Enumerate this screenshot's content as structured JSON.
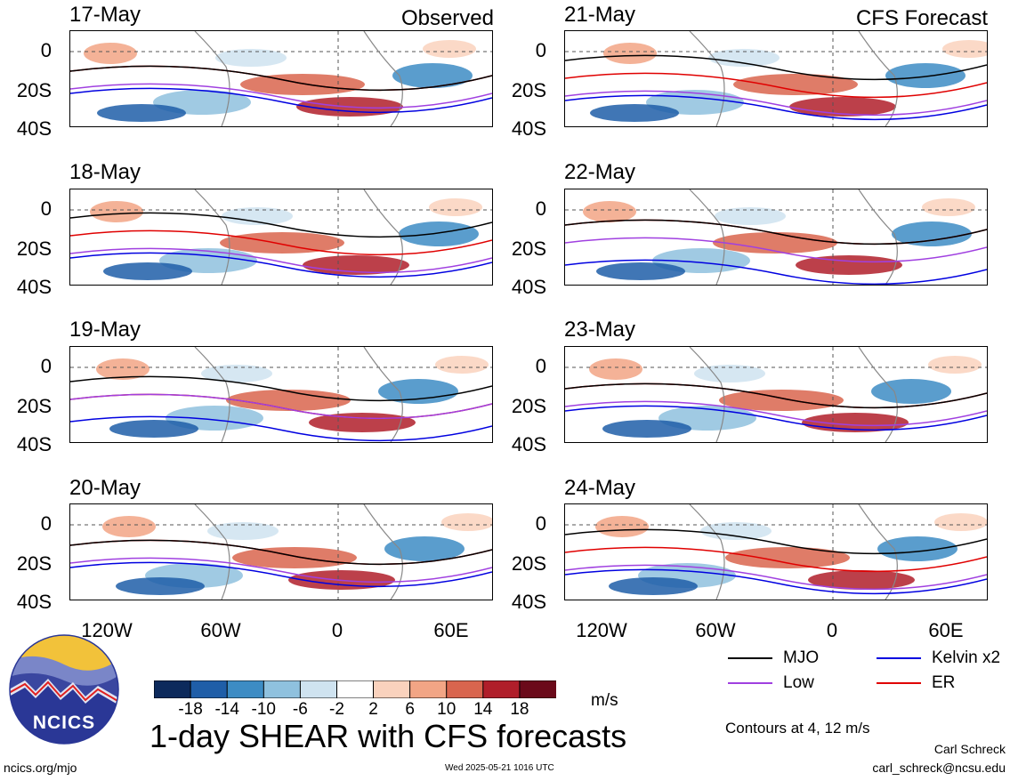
{
  "panels": {
    "left_header": "Observed",
    "right_header": "CFS Forecast",
    "left_dates": [
      "17-May",
      "18-May",
      "19-May",
      "20-May"
    ],
    "right_dates": [
      "21-May",
      "22-May",
      "23-May",
      "24-May"
    ]
  },
  "axes": {
    "y_ticks": [
      "0",
      "20S",
      "40S"
    ],
    "x_ticks": [
      "120W",
      "60W",
      "0",
      "60E"
    ]
  },
  "legend": {
    "items": [
      {
        "label": "MJO",
        "color": "#000000"
      },
      {
        "label": "Kelvin x2",
        "color": "#0000e0"
      },
      {
        "label": "Low",
        "color": "#a040e0"
      },
      {
        "label": "ER",
        "color": "#e00000"
      }
    ],
    "contours_note": "Contours at 4, 12 m/s"
  },
  "colorbar": {
    "ticks": [
      "-18",
      "-14",
      "-10",
      "-6",
      "-2",
      "2",
      "6",
      "10",
      "14",
      "18"
    ],
    "unit": "m/s",
    "colors": [
      "#0d2a5c",
      "#1f5ea8",
      "#3d8cc4",
      "#8fc1de",
      "#cfe3f0",
      "#ffffff",
      "#fad2bd",
      "#f2a585",
      "#d9654e",
      "#b01e2a",
      "#6b0a1a"
    ]
  },
  "title": "1-day SHEAR with CFS forecasts",
  "brand": {
    "logo_text": "NCICS"
  },
  "footer": {
    "url": "ncics.org/mjo",
    "timestamp": "Wed 2025-05-21 1016 UTC",
    "author": "Carl Schreck",
    "email": "carl_schreck@ncsu.edu"
  }
}
